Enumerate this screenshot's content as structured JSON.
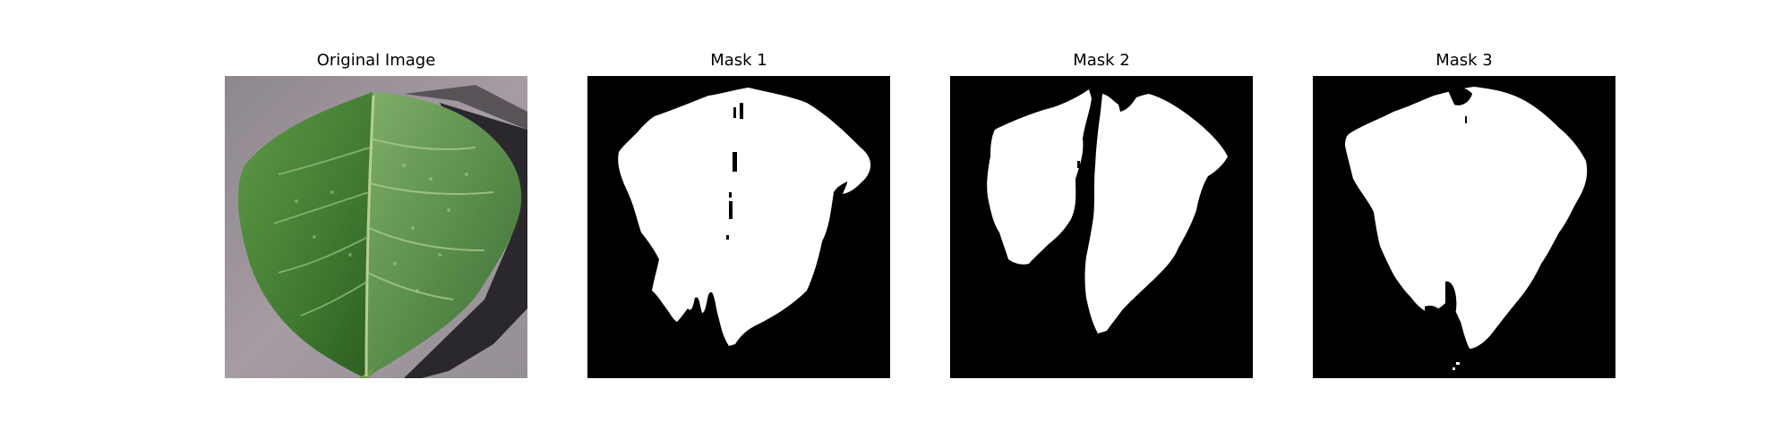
{
  "panels": [
    {
      "title": "Original Image"
    },
    {
      "title": "Mask 1"
    },
    {
      "title": "Mask 2"
    },
    {
      "title": "Mask 3"
    }
  ],
  "colors": {
    "background": "#ffffff",
    "mask_background": "#000000",
    "mask_foreground": "#ffffff",
    "leaf": "#3f7a34",
    "surface": "#9b9399"
  }
}
